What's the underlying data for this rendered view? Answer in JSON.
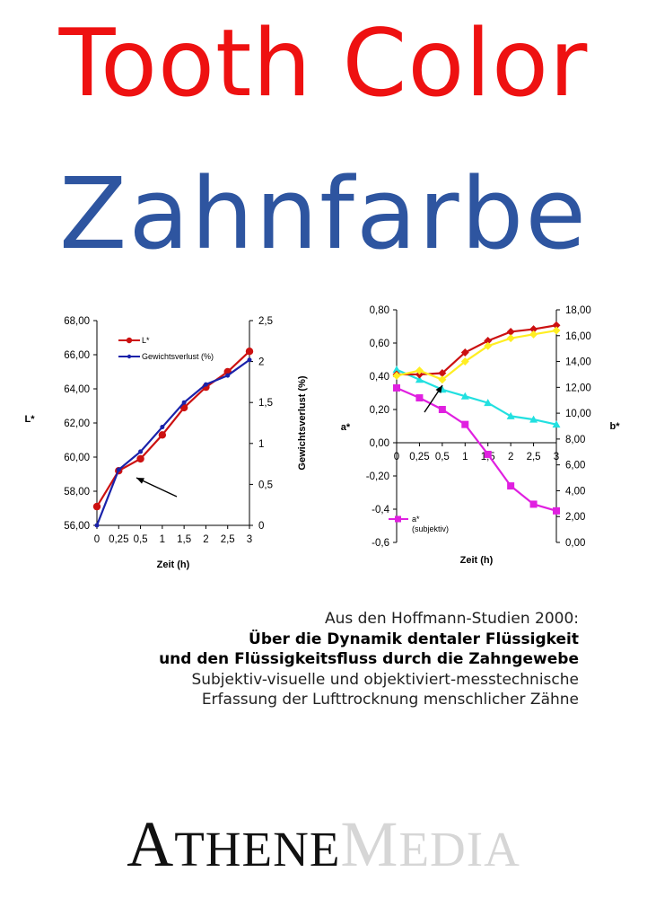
{
  "title_en": "Tooth Color",
  "title_de": "Zahnfarbe",
  "colors": {
    "title_en": "#ee1111",
    "title_de": "#2e55a0",
    "l_series": "#cc1111",
    "weight_series": "#1a22aa",
    "a_subjective": "#e020e0",
    "a_cyan": "#22e0e0",
    "b_red": "#cc1111",
    "b_yellow": "#ffee22"
  },
  "chart_data": [
    {
      "type": "line",
      "xlabel": "Zeit (h)",
      "ylabel": "L*",
      "y2label": "Gewichtsverlust (%)",
      "categories": [
        "0",
        "0,25",
        "0,5",
        "1",
        "1,5",
        "2",
        "2,5",
        "3"
      ],
      "y_ticks": [
        "56,00",
        "58,00",
        "60,00",
        "62,00",
        "64,00",
        "66,00",
        "68,00"
      ],
      "y2_ticks": [
        "0",
        "0,5",
        "1",
        "1,5",
        "2",
        "2,5"
      ],
      "ylim": [
        56,
        68
      ],
      "y2lim": [
        0,
        2.5
      ],
      "series": [
        {
          "name": "L*",
          "axis": "left",
          "values": [
            57.1,
            59.2,
            59.9,
            61.3,
            62.9,
            64.1,
            65.0,
            66.2
          ]
        },
        {
          "name": "Gewichtsverlust (%)",
          "axis": "right",
          "values": [
            0,
            0.68,
            0.9,
            1.2,
            1.5,
            1.72,
            1.83,
            2.02
          ]
        }
      ],
      "annotation": "arrow"
    },
    {
      "type": "line",
      "xlabel": "Zeit (h)",
      "ylabel": "a*",
      "y2label": "b*",
      "categories": [
        "0",
        "0,25",
        "0,5",
        "1",
        "1,5",
        "2",
        "2,5",
        "3"
      ],
      "y_ticks": [
        "-0,6",
        "-0,4",
        "-0,20",
        "0,00",
        "0,20",
        "0,40",
        "0,60",
        "0,80"
      ],
      "y2_ticks": [
        "0,00",
        "2,00",
        "4,00",
        "6,00",
        "8,00",
        "10,00",
        "12,00",
        "14,00",
        "16,00",
        "18,00"
      ],
      "ylim": [
        -0.6,
        0.8
      ],
      "y2lim": [
        0,
        18
      ],
      "series": [
        {
          "name": "a* (subjektiv)",
          "axis": "left",
          "values": [
            0.33,
            0.27,
            0.2,
            0.11,
            -0.07,
            -0.26,
            -0.37,
            -0.41
          ]
        },
        {
          "axis": "left",
          "values": [
            0.44,
            0.38,
            0.32,
            0.28,
            0.24,
            0.16,
            0.14,
            0.11
          ]
        },
        {
          "axis": "right",
          "values": [
            13.0,
            13.0,
            13.1,
            14.7,
            15.6,
            16.3,
            16.5,
            16.8
          ]
        },
        {
          "axis": "right",
          "values": [
            12.9,
            13.3,
            12.6,
            14.0,
            15.2,
            15.8,
            16.1,
            16.4
          ]
        }
      ],
      "legend": {
        "label_line1": "a*",
        "label_line2": "(subjektiv)"
      },
      "annotation": "arrow"
    }
  ],
  "description": {
    "line1": "Aus den Hoffmann-Studien 2000:",
    "line2": "Über die Dynamik dentaler Flüssigkeit",
    "line3": "und den Flüssigkeitsfluss durch die Zahngewebe",
    "line4": "Subjektiv-visuelle und objektiviert-messtechnische",
    "line5": "Erfassung der Lufttrocknung menschlicher Zähne"
  },
  "publisher": {
    "athene_initial": "A",
    "athene_rest": "THENE",
    "media_initial": "M",
    "media_rest": "EDIA"
  }
}
